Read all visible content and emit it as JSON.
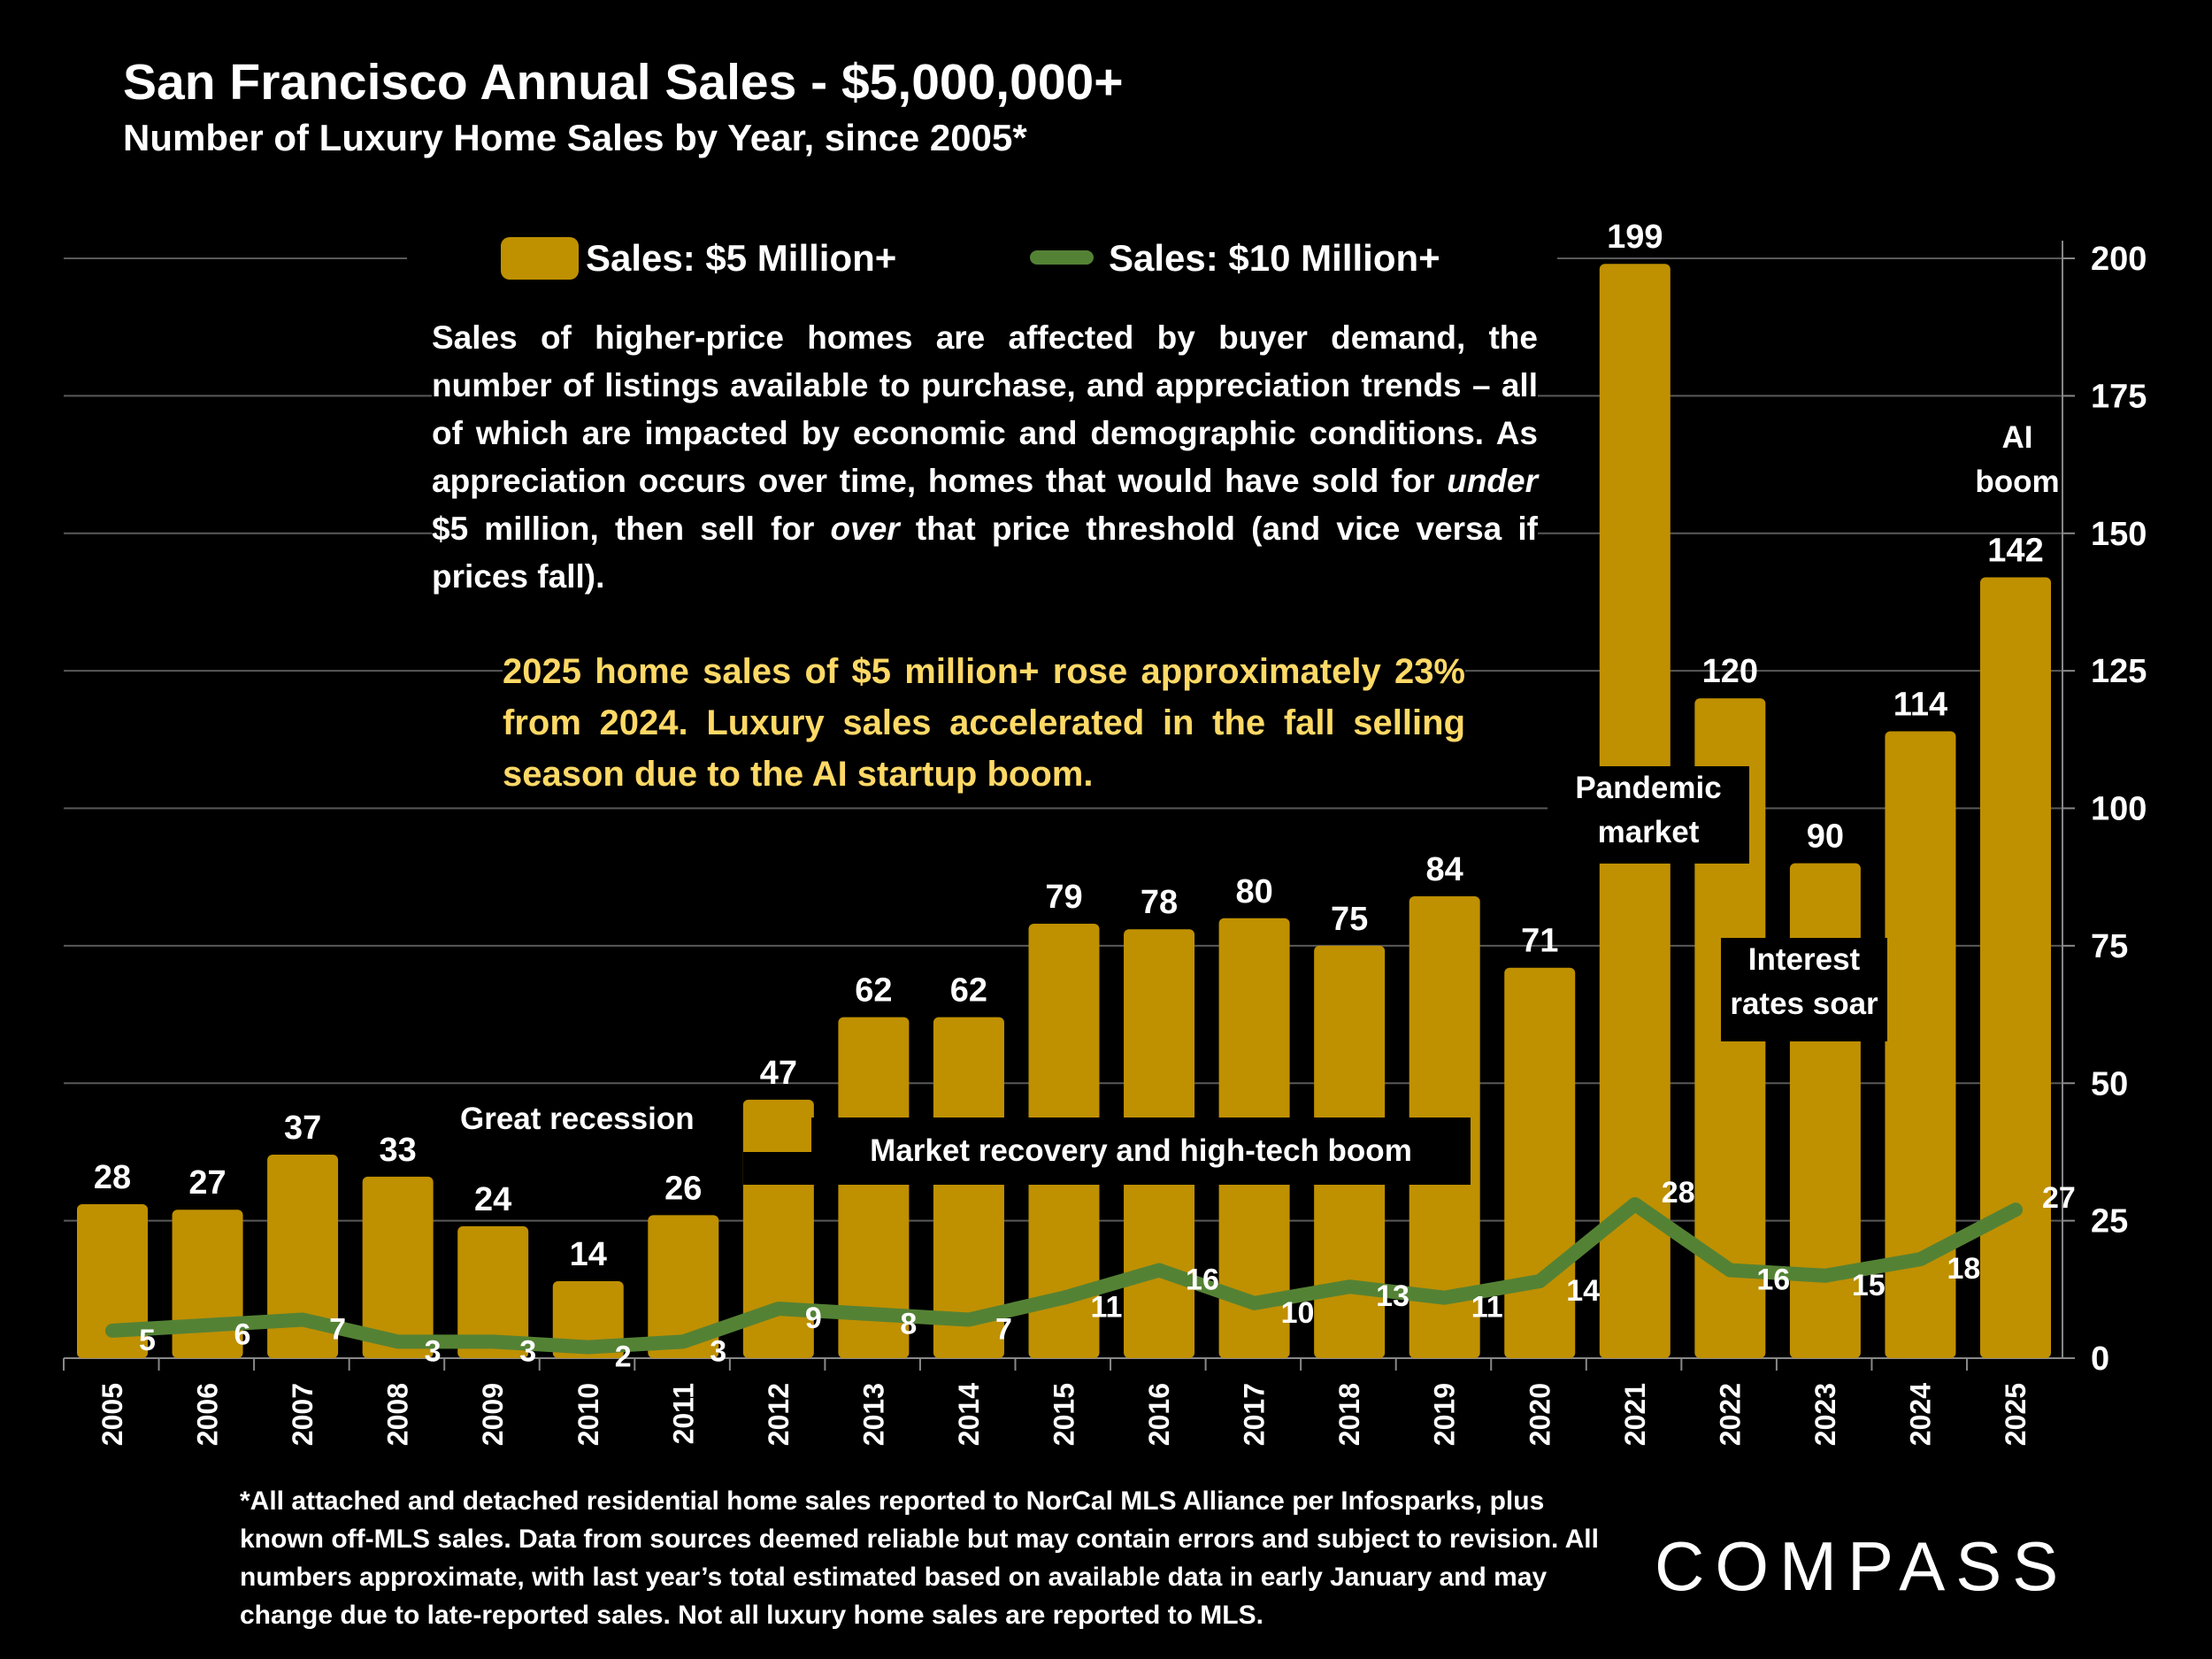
{
  "title": "San Francisco Annual Sales - $5,000,000+",
  "subtitle": "Number of Luxury Home Sales by Year, since 2005*",
  "description": "Sales of higher-price homes are affected by buyer demand, the number of listings available to purchase, and appreciation trends – all of which are impacted by economic and demographic conditions. As appreciation occurs over time, homes that would have sold for <i>under</i> $5 million, then sell for <i>over</i> that price threshold (and vice versa if prices fall).",
  "highlight": "2025 home sales of $5 million+ rose approximately 23% from 2024. Luxury sales accelerated in the fall selling season due to the AI startup boom.",
  "annotations": {
    "great_recession": "Great recession",
    "market_recovery": "Market recovery and high-tech boom",
    "pandemic": "Pandemic market",
    "interest_rates": "Interest rates soar",
    "ai_boom": "AI boom"
  },
  "footnote": "*All attached and detached residential home sales reported to NorCal MLS Alliance per Infosparks, plus known off-MLS sales. Data from sources deemed reliable but may contain errors and subject to revision. All numbers approximate, with last year’s total estimated based on available data in early January and may change due to late-reported sales. Not all luxury home sales are reported to MLS.",
  "logo": "COMPASS",
  "colors": {
    "bar": "#BF9000",
    "line": "#548235",
    "highlight_text": "#FFD966"
  },
  "chart_data": {
    "type": "bar",
    "title": "San Francisco Annual Sales - $5,000,000+",
    "categories": [
      "2005",
      "2006",
      "2007",
      "2008",
      "2009",
      "2010",
      "2011",
      "2012",
      "2013",
      "2014",
      "2015",
      "2016",
      "2017",
      "2018",
      "2019",
      "2020",
      "2021",
      "2022",
      "2023",
      "2024",
      "2025"
    ],
    "series": [
      {
        "name": "Sales:  $5 Million+",
        "type": "bar",
        "values": [
          28,
          27,
          37,
          33,
          24,
          14,
          26,
          47,
          62,
          62,
          79,
          78,
          80,
          75,
          84,
          71,
          199,
          120,
          90,
          114,
          142
        ]
      },
      {
        "name": "Sales: $10 Million+",
        "type": "line",
        "values": [
          5,
          6,
          7,
          3,
          3,
          2,
          3,
          9,
          8,
          7,
          11,
          16,
          10,
          13,
          11,
          14,
          28,
          16,
          15,
          18,
          27
        ]
      }
    ],
    "y_axis": {
      "position": "right",
      "range": [
        0,
        200
      ],
      "ticks": [
        0,
        25,
        50,
        75,
        100,
        125,
        150,
        175,
        200
      ]
    },
    "grid": true,
    "legend": "top"
  }
}
